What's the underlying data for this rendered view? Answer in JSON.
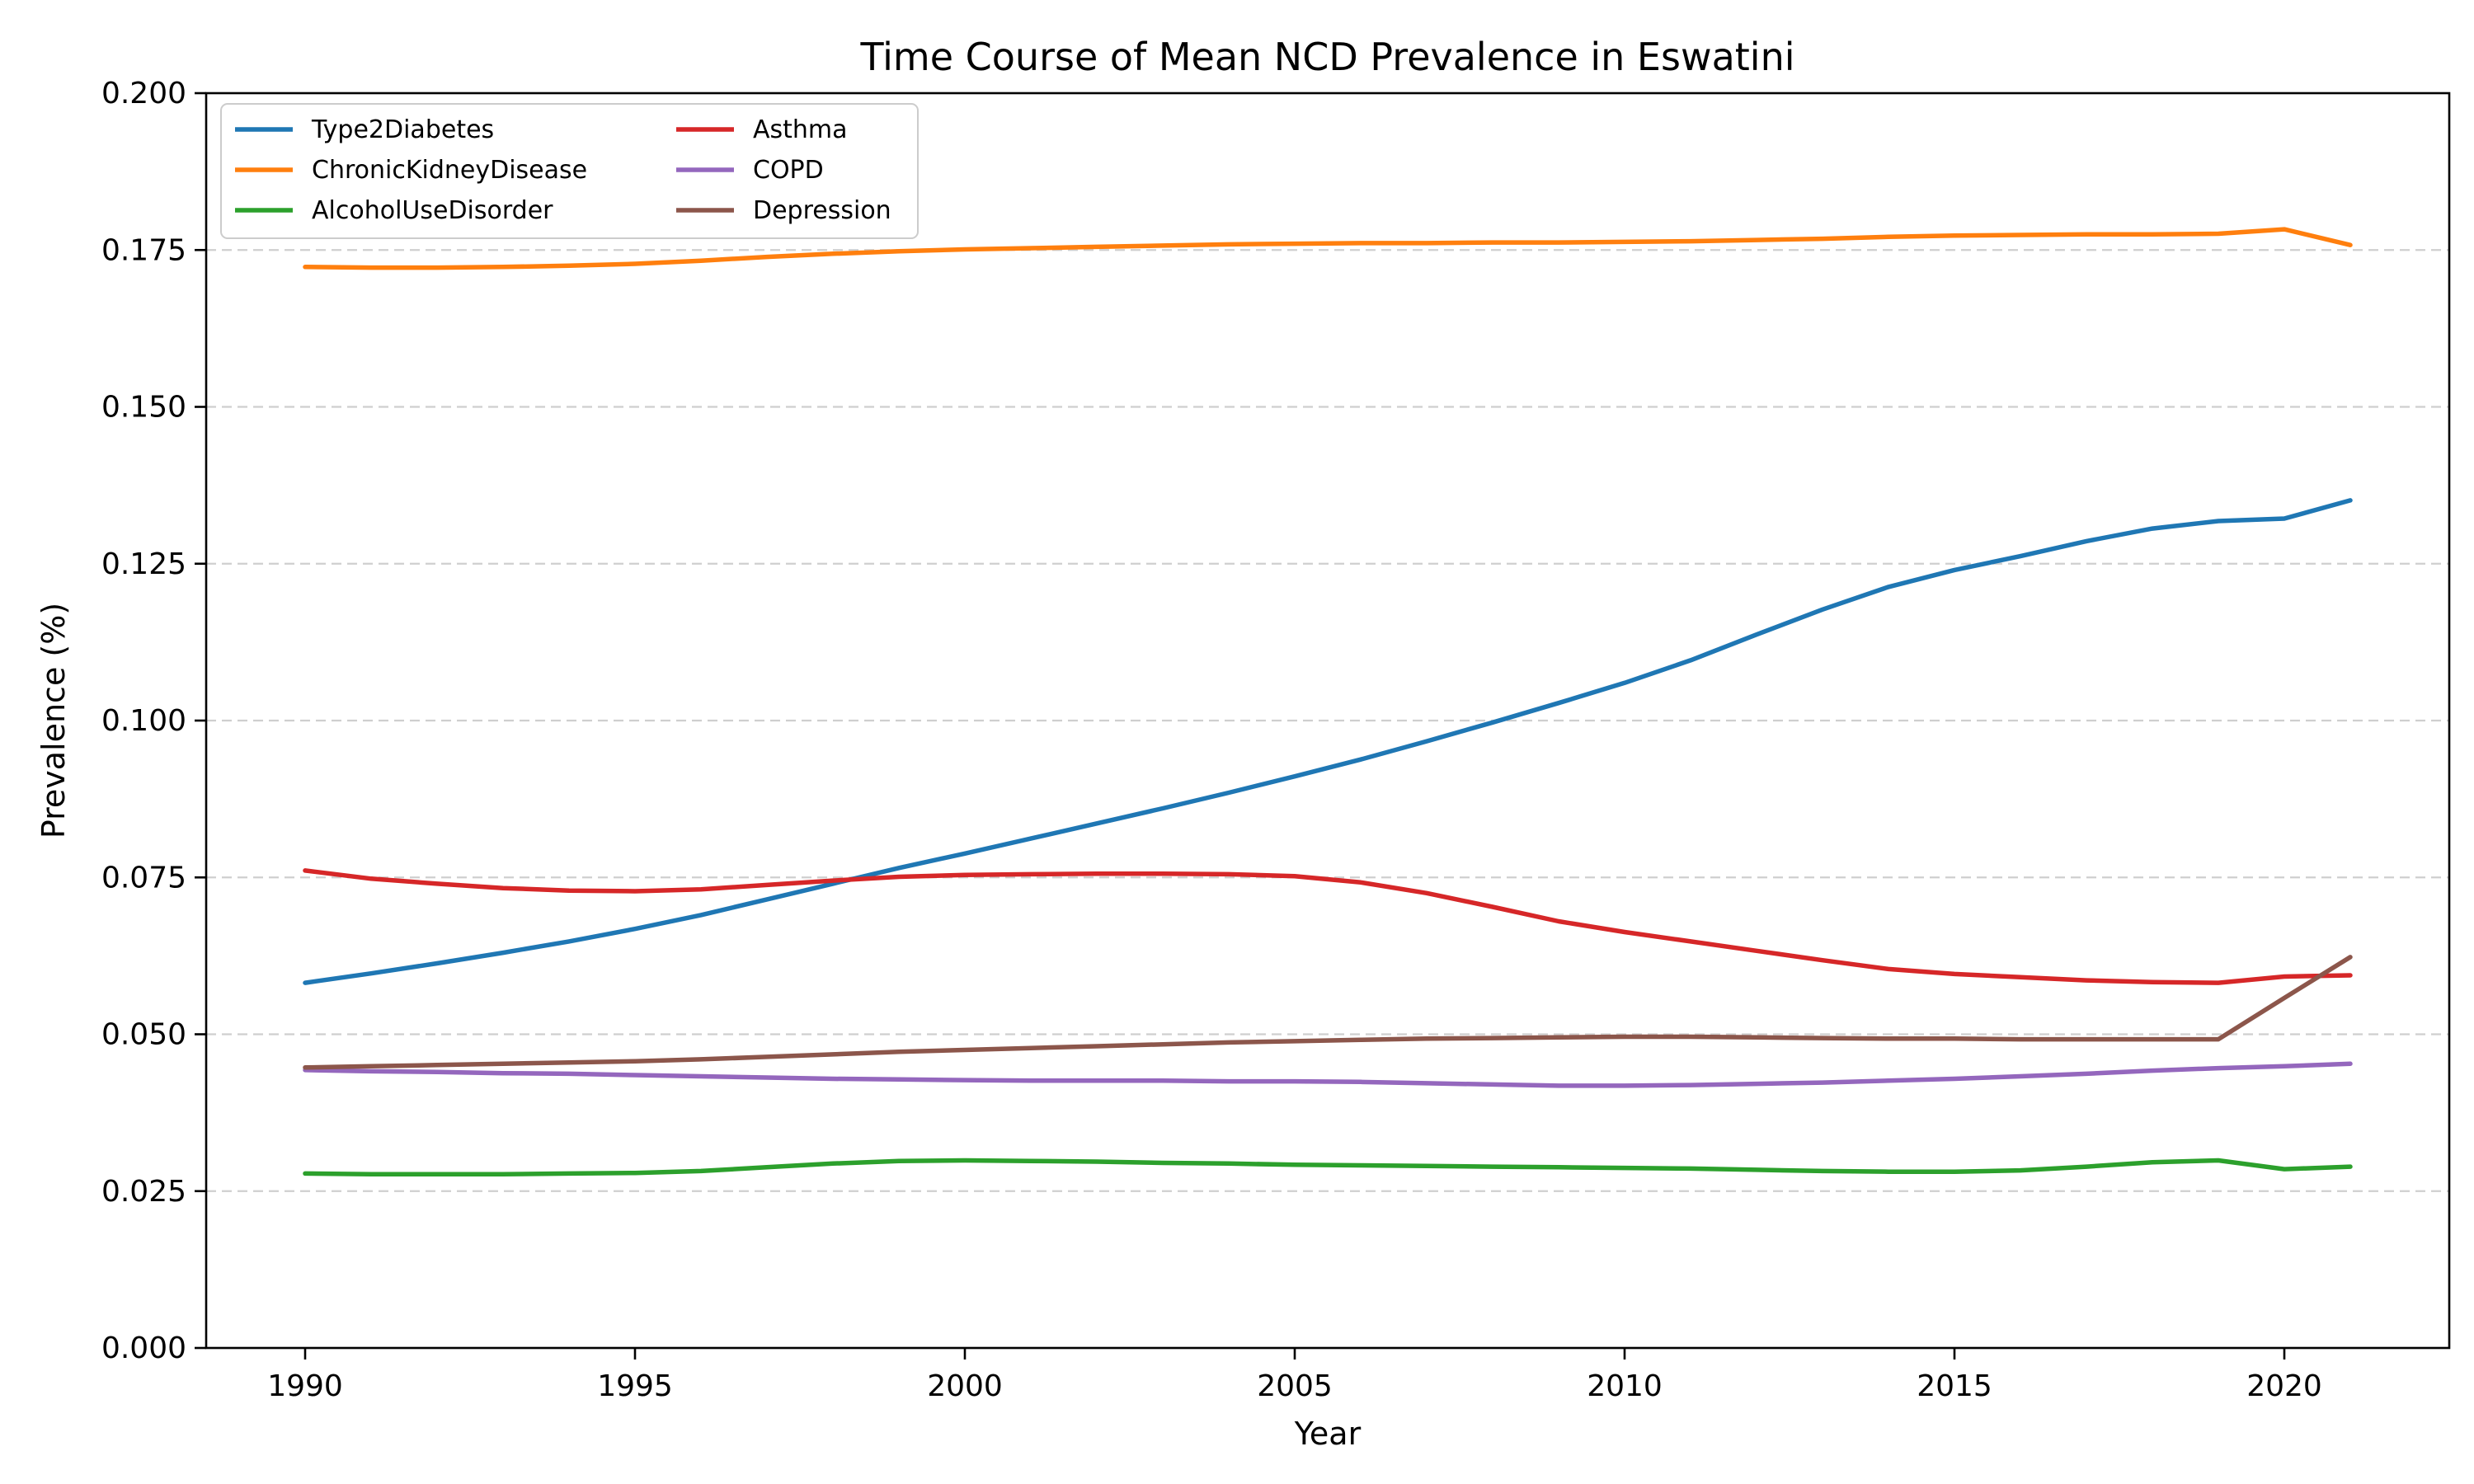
{
  "chart_data": {
    "type": "line",
    "title": "Time Course of Mean NCD Prevalence in Eswatini",
    "xlabel": "Year",
    "ylabel": "Prevalence (%)",
    "xlim": [
      1988.5,
      2022.5
    ],
    "ylim": [
      0,
      0.2
    ],
    "xticks": [
      1990,
      1995,
      2000,
      2005,
      2010,
      2015,
      2020
    ],
    "xtick_labels": [
      "1990",
      "1995",
      "2000",
      "2005",
      "2010",
      "2015",
      "2020"
    ],
    "yticks": [
      0,
      0.025,
      0.05,
      0.075,
      0.1,
      0.125,
      0.15,
      0.175,
      0.2
    ],
    "ytick_labels": [
      "0.000",
      "0.025",
      "0.050",
      "0.075",
      "0.100",
      "0.125",
      "0.150",
      "0.175",
      "0.200"
    ],
    "grid": "y-dashed",
    "legend_position": "top-left",
    "legend_columns": 2,
    "x": [
      1990,
      1991,
      1992,
      1993,
      1994,
      1995,
      1996,
      1997,
      1998,
      1999,
      2000,
      2001,
      2002,
      2003,
      2004,
      2005,
      2006,
      2007,
      2008,
      2009,
      2010,
      2011,
      2012,
      2013,
      2014,
      2015,
      2016,
      2017,
      2018,
      2019,
      2020,
      2021
    ],
    "series": [
      {
        "name": "Type2Diabetes",
        "color": "#1f77b4",
        "values": [
          0.0582,
          0.0597,
          0.0613,
          0.063,
          0.0648,
          0.0668,
          0.069,
          0.0715,
          0.074,
          0.0765,
          0.0788,
          0.0812,
          0.0836,
          0.086,
          0.0885,
          0.0911,
          0.0938,
          0.0967,
          0.0997,
          0.1028,
          0.106,
          0.1096,
          0.1137,
          0.1177,
          0.1213,
          0.124,
          0.1262,
          0.1286,
          0.1306,
          0.1318,
          0.1322,
          0.1351
        ]
      },
      {
        "name": "ChronicKidneyDisease",
        "color": "#ff7f0e",
        "values": [
          0.1723,
          0.1722,
          0.1722,
          0.1723,
          0.1725,
          0.1728,
          0.1733,
          0.1739,
          0.1744,
          0.1748,
          0.1751,
          0.1753,
          0.1755,
          0.1757,
          0.1759,
          0.176,
          0.1761,
          0.1761,
          0.1762,
          0.1762,
          0.1763,
          0.1764,
          0.1766,
          0.1768,
          0.1771,
          0.1773,
          0.1774,
          0.1775,
          0.1775,
          0.1776,
          0.1783,
          0.1758
        ]
      },
      {
        "name": "AlcoholUseDisorder",
        "color": "#2ca02c",
        "values": [
          0.0278,
          0.0277,
          0.0277,
          0.0277,
          0.0278,
          0.0279,
          0.0282,
          0.0288,
          0.0294,
          0.0298,
          0.0299,
          0.0298,
          0.0297,
          0.0295,
          0.0294,
          0.0292,
          0.0291,
          0.029,
          0.0289,
          0.0288,
          0.0287,
          0.0286,
          0.0284,
          0.0282,
          0.0281,
          0.0281,
          0.0283,
          0.0289,
          0.0296,
          0.0299,
          0.0285,
          0.0289
        ]
      },
      {
        "name": "Asthma",
        "color": "#d62728",
        "values": [
          0.0761,
          0.0748,
          0.074,
          0.0733,
          0.0729,
          0.0728,
          0.0731,
          0.0738,
          0.0745,
          0.0751,
          0.0754,
          0.0755,
          0.0756,
          0.0756,
          0.0755,
          0.0752,
          0.0742,
          0.0725,
          0.0703,
          0.068,
          0.0663,
          0.0648,
          0.0633,
          0.0618,
          0.0604,
          0.0596,
          0.0591,
          0.0586,
          0.0583,
          0.0582,
          0.0592,
          0.0594
        ]
      },
      {
        "name": "COPD",
        "color": "#9467bd",
        "values": [
          0.0443,
          0.0441,
          0.044,
          0.0438,
          0.0437,
          0.0435,
          0.0433,
          0.0431,
          0.0429,
          0.0428,
          0.0427,
          0.0426,
          0.0426,
          0.0426,
          0.0425,
          0.0425,
          0.0424,
          0.0422,
          0.042,
          0.0418,
          0.0418,
          0.0419,
          0.0421,
          0.0423,
          0.0426,
          0.0429,
          0.0433,
          0.0437,
          0.0442,
          0.0446,
          0.0449,
          0.0453
        ]
      },
      {
        "name": "Depression",
        "color": "#8c564b",
        "values": [
          0.0447,
          0.0449,
          0.0451,
          0.0453,
          0.0455,
          0.0457,
          0.046,
          0.0464,
          0.0468,
          0.0472,
          0.0475,
          0.0478,
          0.0481,
          0.0484,
          0.0487,
          0.0489,
          0.0491,
          0.0493,
          0.0494,
          0.0495,
          0.0496,
          0.0496,
          0.0495,
          0.0494,
          0.0493,
          0.0493,
          0.0492,
          0.0492,
          0.0492,
          0.0492,
          0.0558,
          0.0623
        ]
      }
    ]
  }
}
